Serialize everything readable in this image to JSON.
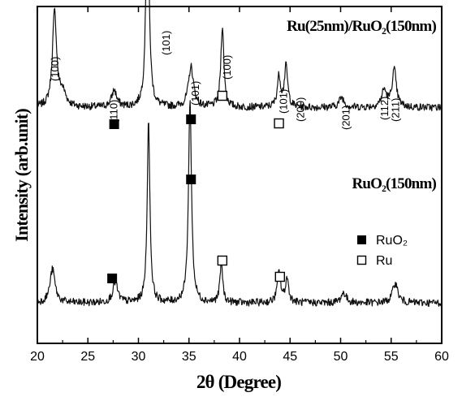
{
  "chart_data": {
    "type": "line",
    "xlabel": "2θ (Degree)",
    "ylabel": "Intensity (arb.unit)",
    "xlim": [
      20,
      60
    ],
    "xticks": [
      20,
      25,
      30,
      35,
      40,
      45,
      50,
      55,
      60
    ],
    "yticks_shown": false,
    "grid": false,
    "legend": {
      "placement": "right-middle",
      "entries": [
        {
          "marker": "filled-square",
          "label": "RuO₂"
        },
        {
          "marker": "open-square",
          "label": "Ru"
        }
      ]
    },
    "series": [
      {
        "name": "Ru(25nm)/RuO₂(150nm)",
        "baseline": 0.7,
        "peaks": [
          {
            "x": 21.7,
            "height": 0.28,
            "width": 0.25
          },
          {
            "x": 22.5,
            "height": 0.04,
            "width": 0.4
          },
          {
            "x": 27.6,
            "height": 0.05,
            "width": 0.3
          },
          {
            "x": 30.9,
            "height": 0.66,
            "width": 0.18
          },
          {
            "x": 35.2,
            "height": 0.12,
            "width": 0.3
          },
          {
            "x": 38.3,
            "height": 0.24,
            "width": 0.18
          },
          {
            "x": 43.9,
            "height": 0.09,
            "width": 0.2
          },
          {
            "x": 44.6,
            "height": 0.12,
            "width": 0.2
          },
          {
            "x": 50.1,
            "height": 0.03,
            "width": 0.3
          },
          {
            "x": 54.3,
            "height": 0.05,
            "width": 0.3
          },
          {
            "x": 55.3,
            "height": 0.11,
            "width": 0.25
          }
        ],
        "peak_labels": [
          {
            "x": 21.7,
            "text": "(100)"
          },
          {
            "x": 27.5,
            "text": "(110)"
          },
          {
            "x": 32.7,
            "text": "(101)"
          },
          {
            "x": 35.6,
            "text": "(101)"
          },
          {
            "x": 38.7,
            "text": "(100)"
          },
          {
            "x": 44.3,
            "text": "(101)"
          },
          {
            "x": 46.0,
            "text": "(200)"
          },
          {
            "x": 50.5,
            "text": "(201)"
          },
          {
            "x": 54.3,
            "text": "(112)"
          },
          {
            "x": 55.4,
            "text": "(211)"
          }
        ],
        "markers": [
          {
            "x": 27.6,
            "type": "filled-square"
          },
          {
            "x": 35.2,
            "type": "filled-square"
          },
          {
            "x": 38.3,
            "type": "open-square"
          },
          {
            "x": 43.9,
            "type": "open-square"
          }
        ]
      },
      {
        "name": "RuO₂(150nm)",
        "baseline": 0.12,
        "peaks": [
          {
            "x": 21.5,
            "height": 0.1,
            "width": 0.3
          },
          {
            "x": 27.7,
            "height": 0.06,
            "width": 0.3
          },
          {
            "x": 31.0,
            "height": 0.54,
            "width": 0.16
          },
          {
            "x": 35.1,
            "height": 0.6,
            "width": 0.18
          },
          {
            "x": 38.2,
            "height": 0.12,
            "width": 0.16
          },
          {
            "x": 43.9,
            "height": 0.09,
            "width": 0.2
          },
          {
            "x": 44.7,
            "height": 0.07,
            "width": 0.2
          },
          {
            "x": 50.3,
            "height": 0.03,
            "width": 0.3
          },
          {
            "x": 55.4,
            "height": 0.06,
            "width": 0.3
          }
        ],
        "markers": [
          {
            "x": 27.4,
            "type": "filled-square"
          },
          {
            "x": 35.2,
            "type": "filled-square"
          },
          {
            "x": 38.3,
            "type": "open-square"
          },
          {
            "x": 44.0,
            "type": "open-square"
          }
        ]
      }
    ]
  }
}
